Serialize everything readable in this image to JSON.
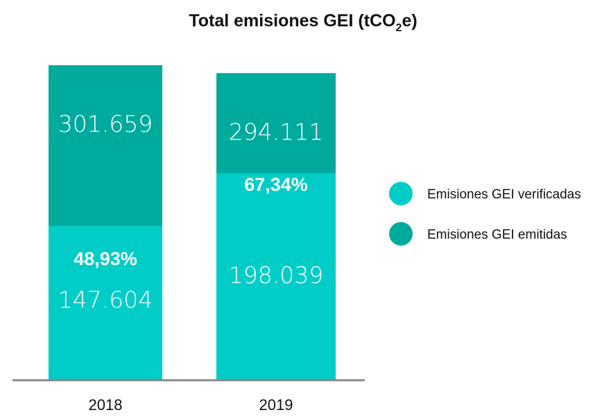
{
  "chart_data": {
    "type": "bar",
    "stacked": true,
    "title": "Total emisiones GEI (tCO",
    "title_subscript": "2",
    "title_suffix": "e)",
    "categories": [
      "2018",
      "2019"
    ],
    "series": [
      {
        "name": "Emisiones GEI verificadas",
        "color": "#00cdc7",
        "values": [
          147604,
          198039
        ],
        "labels": [
          "147.604",
          "198.039"
        ]
      },
      {
        "name": "Emisiones GEI emitidas",
        "color": "#00aa9d",
        "values": [
          154055,
          96072
        ],
        "labels": [
          "301.659",
          "294.111"
        ]
      }
    ],
    "totals": [
      301659,
      294111
    ],
    "percent_labels": [
      "48,93%",
      "67,34%"
    ],
    "ylim": [
      0,
      301659
    ],
    "grid": false,
    "legend_position": "right"
  },
  "colors": {
    "verified": "#00cdc7",
    "emitted": "#00aa9d",
    "axis": "#888888",
    "text": "#111111"
  }
}
